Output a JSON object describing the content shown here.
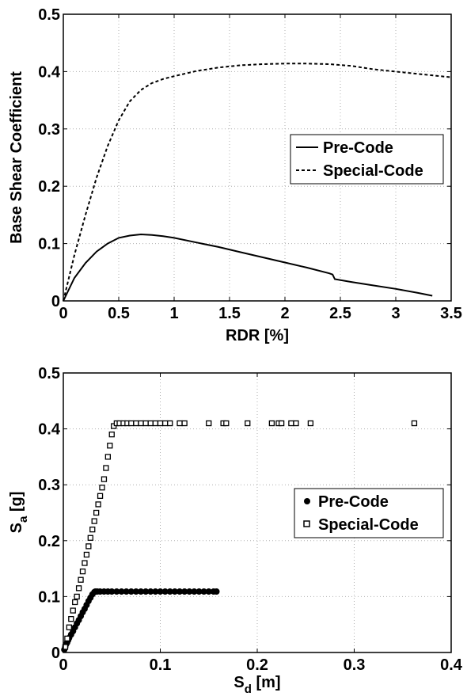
{
  "chart_data": [
    {
      "type": "line",
      "title": "",
      "xlabel": "RDR [%]",
      "ylabel": "Base Shear Coefficient",
      "xlim": [
        0,
        3.5
      ],
      "ylim": [
        0,
        0.5
      ],
      "xticks": [
        "0",
        "0.5",
        "1",
        "1.5",
        "2",
        "2.5",
        "3",
        "3.5"
      ],
      "yticks": [
        "0",
        "0.1",
        "0.2",
        "0.3",
        "0.4",
        "0.5"
      ],
      "grid": true,
      "legend_position": "center-right",
      "series": [
        {
          "name": "Pre-Code",
          "style": "solid",
          "x": [
            0,
            0.1,
            0.2,
            0.3,
            0.4,
            0.5,
            0.6,
            0.7,
            0.8,
            0.9,
            1.0,
            1.2,
            1.4,
            1.6,
            1.8,
            2.0,
            2.2,
            2.4,
            2.43,
            2.45,
            2.6,
            2.8,
            3.0,
            3.2,
            3.33
          ],
          "y": [
            0,
            0.04,
            0.066,
            0.086,
            0.1,
            0.11,
            0.114,
            0.116,
            0.115,
            0.113,
            0.11,
            0.102,
            0.094,
            0.085,
            0.076,
            0.067,
            0.058,
            0.048,
            0.046,
            0.038,
            0.033,
            0.027,
            0.021,
            0.014,
            0.009
          ]
        },
        {
          "name": "Special-Code",
          "style": "dashed",
          "x": [
            0,
            0.1,
            0.2,
            0.3,
            0.4,
            0.5,
            0.6,
            0.7,
            0.8,
            0.9,
            1.0,
            1.2,
            1.4,
            1.6,
            1.8,
            2.0,
            2.2,
            2.4,
            2.6,
            2.8,
            3.0,
            3.2,
            3.5
          ],
          "y": [
            0,
            0.08,
            0.15,
            0.215,
            0.27,
            0.315,
            0.348,
            0.368,
            0.38,
            0.387,
            0.392,
            0.401,
            0.407,
            0.411,
            0.413,
            0.414,
            0.414,
            0.413,
            0.41,
            0.404,
            0.4,
            0.396,
            0.39
          ]
        }
      ]
    },
    {
      "type": "scatter",
      "title": "",
      "xlabel": "S",
      "xlabel_sub": "d",
      "xlabel_unit": " [m]",
      "ylabel": "S",
      "ylabel_sub": "a",
      "ylabel_unit": " [g]",
      "xlim": [
        0,
        0.4
      ],
      "ylim": [
        0,
        0.5
      ],
      "xticks": [
        "0",
        "0.1",
        "0.2",
        "0.3",
        "0.4"
      ],
      "yticks": [
        "0",
        "0.1",
        "0.2",
        "0.3",
        "0.4",
        "0.5"
      ],
      "grid": true,
      "legend_position": "center-right",
      "series": [
        {
          "name": "Pre-Code",
          "marker": "filled-circle",
          "x": [
            0.001,
            0.002,
            0.003,
            0.004,
            0.005,
            0.006,
            0.008,
            0.01,
            0.012,
            0.014,
            0.016,
            0.018,
            0.02,
            0.022,
            0.024,
            0.026,
            0.028,
            0.03,
            0.032,
            0.033,
            0.035,
            0.038,
            0.042,
            0.046,
            0.05,
            0.055,
            0.06,
            0.065,
            0.07,
            0.075,
            0.08,
            0.085,
            0.09,
            0.095,
            0.1,
            0.105,
            0.11,
            0.115,
            0.12,
            0.125,
            0.13,
            0.135,
            0.14,
            0.145,
            0.15,
            0.155,
            0.158
          ],
          "y": [
            0.005,
            0.01,
            0.015,
            0.018,
            0.022,
            0.026,
            0.032,
            0.038,
            0.045,
            0.052,
            0.058,
            0.065,
            0.072,
            0.078,
            0.085,
            0.092,
            0.098,
            0.104,
            0.108,
            0.109,
            0.109,
            0.109,
            0.109,
            0.109,
            0.109,
            0.109,
            0.109,
            0.109,
            0.109,
            0.109,
            0.109,
            0.109,
            0.109,
            0.109,
            0.109,
            0.109,
            0.109,
            0.109,
            0.109,
            0.109,
            0.109,
            0.109,
            0.109,
            0.109,
            0.109,
            0.109,
            0.109
          ]
        },
        {
          "name": "Special-Code",
          "marker": "open-square",
          "x": [
            0.002,
            0.004,
            0.006,
            0.008,
            0.01,
            0.012,
            0.014,
            0.016,
            0.018,
            0.02,
            0.022,
            0.024,
            0.026,
            0.028,
            0.03,
            0.032,
            0.034,
            0.036,
            0.038,
            0.04,
            0.042,
            0.044,
            0.046,
            0.048,
            0.05,
            0.052,
            0.055,
            0.058,
            0.062,
            0.066,
            0.07,
            0.075,
            0.08,
            0.085,
            0.09,
            0.095,
            0.1,
            0.105,
            0.11,
            0.12,
            0.125,
            0.15,
            0.165,
            0.168,
            0.19,
            0.215,
            0.222,
            0.225,
            0.235,
            0.24,
            0.255,
            0.362
          ],
          "y": [
            0.01,
            0.025,
            0.045,
            0.06,
            0.075,
            0.09,
            0.1,
            0.115,
            0.13,
            0.145,
            0.16,
            0.175,
            0.19,
            0.205,
            0.22,
            0.235,
            0.25,
            0.265,
            0.28,
            0.295,
            0.31,
            0.33,
            0.35,
            0.37,
            0.39,
            0.405,
            0.41,
            0.41,
            0.41,
            0.41,
            0.41,
            0.41,
            0.41,
            0.41,
            0.41,
            0.41,
            0.41,
            0.41,
            0.41,
            0.41,
            0.41,
            0.41,
            0.41,
            0.41,
            0.41,
            0.41,
            0.41,
            0.41,
            0.41,
            0.41,
            0.41,
            0.41
          ]
        }
      ]
    }
  ]
}
